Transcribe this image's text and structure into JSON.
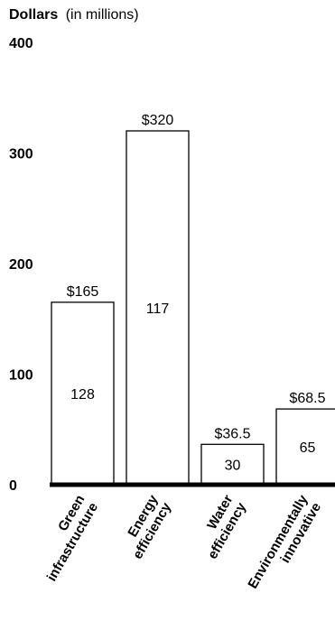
{
  "chart_data": {
    "type": "bar",
    "ylabel_bold": "Dollars",
    "ylabel_unit": "(in millions)",
    "ylim": [
      0,
      400
    ],
    "yticks": [
      {
        "value": 0,
        "label": "0"
      },
      {
        "value": 100,
        "label": "100"
      },
      {
        "value": 200,
        "label": "200"
      },
      {
        "value": 300,
        "label": "300"
      },
      {
        "value": 400,
        "label": "400"
      }
    ],
    "categories": [
      [
        "Green",
        "infrastructure"
      ],
      [
        "Energy",
        "efficiency"
      ],
      [
        "Water",
        "efficiency"
      ],
      [
        "Environmentally",
        "innovative"
      ]
    ],
    "values": [
      165,
      320,
      36.5,
      68.5
    ],
    "value_labels": [
      "$165",
      "$320",
      "$36.5",
      "$68.5"
    ],
    "inner_labels": [
      "128",
      "117",
      "30",
      "65"
    ],
    "grid": false,
    "legend": "none"
  }
}
